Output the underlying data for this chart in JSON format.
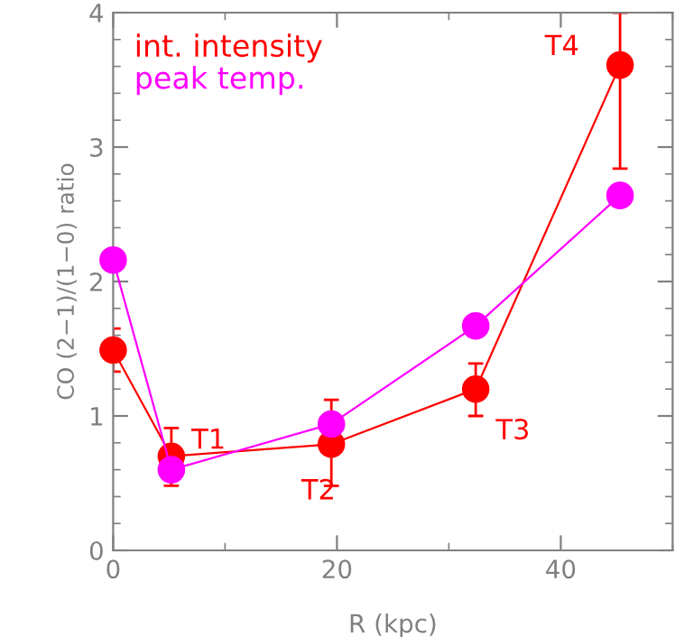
{
  "chart_data": {
    "type": "line",
    "xlabel": "R (kpc)",
    "ylabel": "CO (2−1)/(1−0) ratio",
    "xlim": [
      0,
      50
    ],
    "ylim": [
      0,
      4
    ],
    "xticks": [
      0,
      20,
      40
    ],
    "yticks": [
      0,
      1,
      2,
      3,
      4
    ],
    "marker": "circle",
    "line_style": "solid",
    "grid": false,
    "legend": "top left",
    "series": [
      {
        "name": "int. intensity",
        "color": "#ff0000",
        "x": [
          0,
          5.2,
          19.5,
          32.4,
          45.3
        ],
        "values": [
          1.49,
          0.7,
          0.79,
          1.2,
          3.61
        ],
        "errors": [
          [
            1.33,
            1.65
          ],
          [
            0.48,
            0.91
          ],
          [
            0.48,
            1.12
          ],
          [
            1.0,
            1.39
          ],
          [
            2.84,
            4.0
          ]
        ]
      },
      {
        "name": "peak temp.",
        "color": "#ff00ff",
        "x": [
          0,
          5.2,
          19.5,
          32.4,
          45.3
        ],
        "values": [
          2.16,
          0.6,
          0.94,
          1.67,
          2.64
        ]
      }
    ],
    "annotations": [
      {
        "text": "T1",
        "x": 5.2,
        "y": 0.7
      },
      {
        "text": "T2",
        "x": 19.5,
        "y": 0.79
      },
      {
        "text": "T3",
        "x": 32.4,
        "y": 1.2
      },
      {
        "text": "T4",
        "x": 45.3,
        "y": 3.61
      }
    ]
  }
}
